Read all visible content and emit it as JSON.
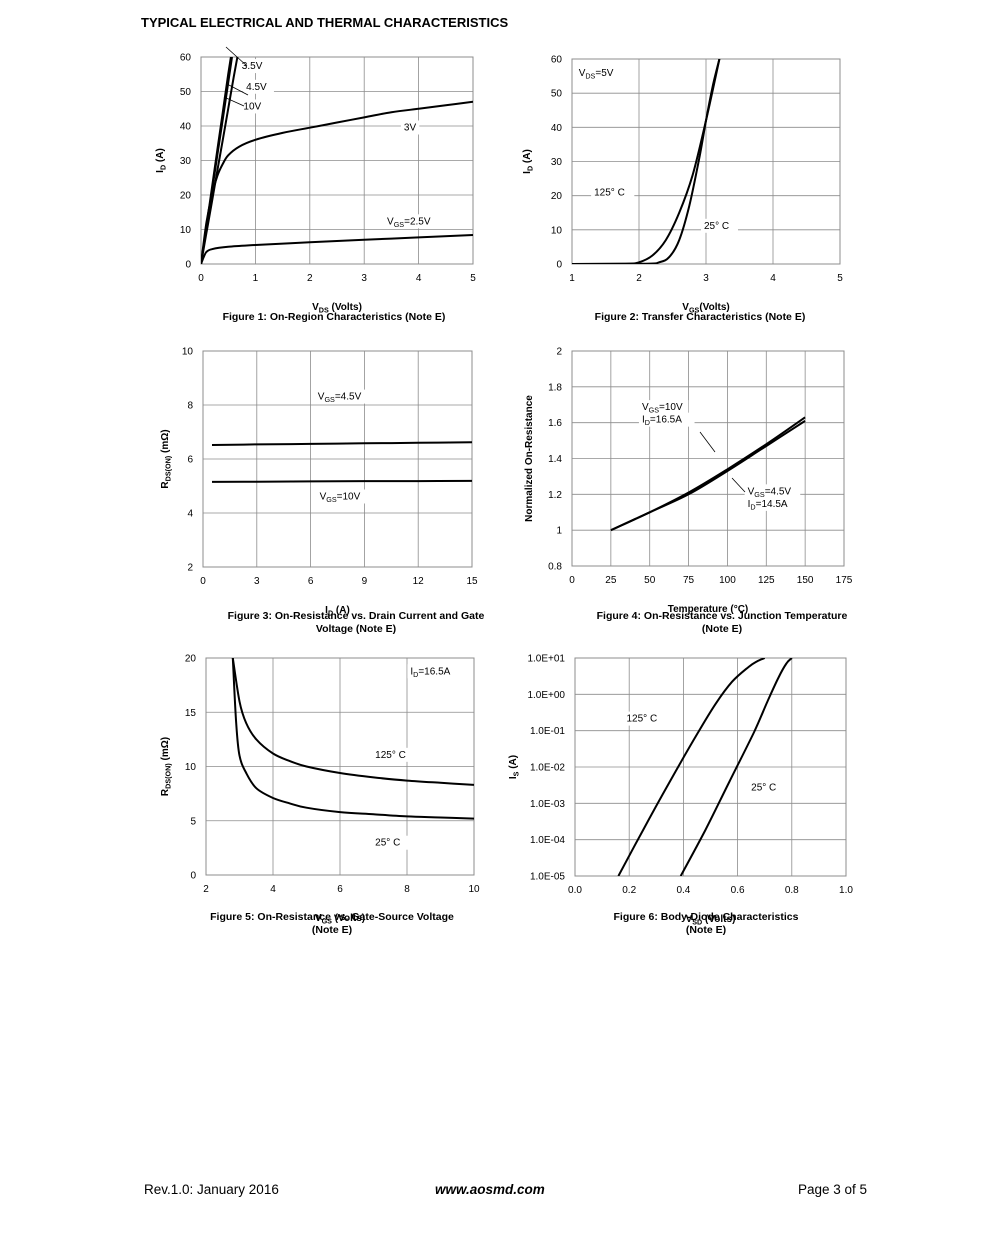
{
  "page": {
    "heading": "TYPICAL ELECTRICAL AND THERMAL CHARACTERISTICS",
    "footer_left": "Rev.1.0: January 2016",
    "footer_center": "www.aosmd.com",
    "footer_right": "Page 3 of 5"
  },
  "chart_data": [
    {
      "id": "fig1",
      "type": "line",
      "caption": [
        "Figure 1: On-Region Characteristics (Note E)"
      ],
      "xlabel": "VDS (Volts)",
      "ylabel": "ID (A)",
      "xlim": [
        0,
        5
      ],
      "ylim": [
        0,
        60
      ],
      "xticks": [
        "0",
        "1",
        "2",
        "3",
        "4",
        "5"
      ],
      "yticks": [
        "0",
        "10",
        "20",
        "30",
        "40",
        "50",
        "60"
      ],
      "grid": true,
      "annotations": [
        {
          "text": "3.5V",
          "x": 0.75,
          "y": 56.5
        },
        {
          "text": "4.5V",
          "x": 0.83,
          "y": 50.5
        },
        {
          "text": "10V",
          "x": 0.78,
          "y": 44.8
        },
        {
          "text": "3V",
          "x": 3.73,
          "y": 38.7
        },
        {
          "text": "VGS=2.5V",
          "x": 3.42,
          "y": 11.5
        }
      ],
      "series": [
        {
          "values": [
            [
              0,
              0
            ],
            [
              0.1,
              11
            ],
            [
              0.2,
              22
            ],
            [
              0.3,
              33
            ],
            [
              0.4,
              44
            ],
            [
              0.5,
              55
            ],
            [
              0.55,
              60
            ]
          ]
        },
        {
          "values": [
            [
              0,
              0
            ],
            [
              0.1,
              10.5
            ],
            [
              0.2,
              21
            ],
            [
              0.3,
              31.5
            ],
            [
              0.4,
              42
            ],
            [
              0.5,
              52.5
            ],
            [
              0.57,
              60
            ]
          ]
        },
        {
          "values": [
            [
              0,
              0
            ],
            [
              0.1,
              9
            ],
            [
              0.2,
              18
            ],
            [
              0.3,
              27
            ],
            [
              0.4,
              36
            ],
            [
              0.5,
              45
            ],
            [
              0.6,
              54
            ],
            [
              0.67,
              60
            ]
          ]
        },
        {
          "values": [
            [
              0,
              0
            ],
            [
              0.1,
              12
            ],
            [
              0.2,
              20
            ],
            [
              0.3,
              25.5
            ],
            [
              0.4,
              29
            ],
            [
              0.5,
              31.5
            ],
            [
              0.7,
              34
            ],
            [
              1,
              36
            ],
            [
              1.5,
              38
            ],
            [
              2,
              39.5
            ],
            [
              2.5,
              41
            ],
            [
              3,
              42.5
            ],
            [
              3.5,
              44
            ],
            [
              4,
              45
            ],
            [
              4.5,
              46
            ],
            [
              5,
              47
            ]
          ]
        },
        {
          "values": [
            [
              0,
              0
            ],
            [
              0.05,
              2
            ],
            [
              0.1,
              3.5
            ],
            [
              0.2,
              4.3
            ],
            [
              0.5,
              5
            ],
            [
              1,
              5.5
            ],
            [
              2,
              6.3
            ],
            [
              3,
              7
            ],
            [
              4,
              7.7
            ],
            [
              5,
              8.4
            ]
          ]
        }
      ]
    },
    {
      "id": "fig2",
      "type": "line",
      "caption": [
        "Figure 2: Transfer Characteristics (Note E)"
      ],
      "xlabel": "VGS(Volts)",
      "ylabel": "ID (A)",
      "xlim": [
        1,
        5
      ],
      "ylim": [
        0,
        60
      ],
      "xticks": [
        "1",
        "2",
        "3",
        "4",
        "5"
      ],
      "yticks": [
        "0",
        "10",
        "20",
        "30",
        "40",
        "50",
        "60"
      ],
      "grid": true,
      "annotations": [
        {
          "text": "VDS=5V",
          "x": 1.1,
          "y": 55
        },
        {
          "text": "125° C",
          "x": 1.33,
          "y": 20
        },
        {
          "text": "25° C",
          "x": 2.97,
          "y": 10.3
        }
      ],
      "series": [
        {
          "name": "125° C",
          "values": [
            [
              1,
              0
            ],
            [
              1.8,
              0.1
            ],
            [
              2.0,
              0.5
            ],
            [
              2.2,
              2.5
            ],
            [
              2.4,
              7
            ],
            [
              2.6,
              15
            ],
            [
              2.8,
              26
            ],
            [
              3.0,
              42
            ],
            [
              3.2,
              60
            ]
          ]
        },
        {
          "name": "25° C",
          "values": [
            [
              1,
              0
            ],
            [
              2.1,
              0.1
            ],
            [
              2.3,
              0.5
            ],
            [
              2.45,
              2
            ],
            [
              2.6,
              7
            ],
            [
              2.75,
              17
            ],
            [
              2.9,
              31
            ],
            [
              3.0,
              42
            ],
            [
              3.1,
              52
            ],
            [
              3.2,
              60
            ]
          ]
        }
      ]
    },
    {
      "id": "fig3",
      "type": "line",
      "caption": [
        "Figure 3: On-Resistance vs. Drain Current and Gate",
        "Voltage (Note E)"
      ],
      "xlabel": "ID (A)",
      "ylabel": "RDS(ON) (mΩ)",
      "xlim": [
        0,
        15
      ],
      "ylim": [
        2,
        10
      ],
      "xticks": [
        "0",
        "3",
        "6",
        "9",
        "12",
        "15"
      ],
      "yticks": [
        "2",
        "4",
        "6",
        "8",
        "10"
      ],
      "grid": true,
      "annotations": [
        {
          "text": "VGS=4.5V",
          "x": 6.4,
          "y": 8.2
        },
        {
          "text": "VGS=10V",
          "x": 6.5,
          "y": 4.5
        }
      ],
      "series": [
        {
          "name": "VGS=4.5V",
          "values": [
            [
              0.5,
              6.52
            ],
            [
              3,
              6.54
            ],
            [
              6,
              6.56
            ],
            [
              9,
              6.58
            ],
            [
              12,
              6.6
            ],
            [
              15,
              6.62
            ]
          ]
        },
        {
          "name": "VGS=10V",
          "values": [
            [
              0.5,
              5.15
            ],
            [
              3,
              5.16
            ],
            [
              6,
              5.17
            ],
            [
              9,
              5.18
            ],
            [
              12,
              5.18
            ],
            [
              15,
              5.19
            ]
          ]
        }
      ]
    },
    {
      "id": "fig4",
      "type": "line",
      "caption": [
        "Figure 4: On-Resistance vs. Junction Temperature",
        "(Note E)"
      ],
      "xlabel": "Temperature (°C)",
      "ylabel": "Normalized On-Resistance",
      "xlim": [
        0,
        175
      ],
      "ylim": [
        0.8,
        2
      ],
      "xticks": [
        "0",
        "25",
        "50",
        "75",
        "100",
        "125",
        "150",
        "175"
      ],
      "yticks": [
        "0.8",
        "1",
        "1.2",
        "1.4",
        "1.6",
        "1.8",
        "2"
      ],
      "grid": true,
      "annotations": [
        {
          "text": "VGS=10V",
          "x": 45,
          "y": 1.67
        },
        {
          "text": "ID=16.5A",
          "x": 45,
          "y": 1.6
        },
        {
          "text": "VGS=4.5V",
          "x": 113,
          "y": 1.2
        },
        {
          "text": "ID=14.5A",
          "x": 113,
          "y": 1.13
        }
      ],
      "series": [
        {
          "name": "VGS=10V, ID=16.5A",
          "values": [
            [
              25,
              1
            ],
            [
              50,
              1.1
            ],
            [
              75,
              1.21
            ],
            [
              100,
              1.34
            ],
            [
              125,
              1.48
            ],
            [
              150,
              1.63
            ]
          ]
        },
        {
          "name": "VGS=4.5V, ID=14.5A",
          "values": [
            [
              25,
              1
            ],
            [
              50,
              1.1
            ],
            [
              75,
              1.2
            ],
            [
              100,
              1.33
            ],
            [
              125,
              1.47
            ],
            [
              150,
              1.61
            ]
          ]
        }
      ]
    },
    {
      "id": "fig5",
      "type": "line",
      "caption": [
        "Figure 5: On-Resistance vs. Gate-Source Voltage",
        "(Note E)"
      ],
      "xlabel": "VGS (Volts)",
      "ylabel": "RDS(ON) (mΩ)",
      "xlim": [
        2,
        10
      ],
      "ylim": [
        0,
        20
      ],
      "xticks": [
        "2",
        "4",
        "6",
        "8",
        "10"
      ],
      "yticks": [
        "0",
        "5",
        "10",
        "15",
        "20"
      ],
      "grid": true,
      "annotations": [
        {
          "text": "ID=16.5A",
          "x": 8.1,
          "y": 18.5
        },
        {
          "text": "125° C",
          "x": 7.05,
          "y": 10.8
        },
        {
          "text": "25° C",
          "x": 7.05,
          "y": 2.7
        }
      ],
      "series": [
        {
          "name": "125° C",
          "values": [
            [
              2.8,
              20
            ],
            [
              3.0,
              16
            ],
            [
              3.2,
              14
            ],
            [
              3.5,
              12.5
            ],
            [
              4,
              11.2
            ],
            [
              4.5,
              10.5
            ],
            [
              5,
              10
            ],
            [
              6,
              9.4
            ],
            [
              7,
              9
            ],
            [
              8,
              8.7
            ],
            [
              9,
              8.5
            ],
            [
              10,
              8.3
            ]
          ]
        },
        {
          "name": "25° C",
          "values": [
            [
              2.8,
              20
            ],
            [
              2.9,
              14
            ],
            [
              3.0,
              11
            ],
            [
              3.2,
              9.4
            ],
            [
              3.5,
              8
            ],
            [
              4,
              7.1
            ],
            [
              4.5,
              6.6
            ],
            [
              5,
              6.2
            ],
            [
              6,
              5.8
            ],
            [
              7,
              5.6
            ],
            [
              8,
              5.4
            ],
            [
              9,
              5.3
            ],
            [
              10,
              5.2
            ]
          ]
        }
      ]
    },
    {
      "id": "fig6",
      "type": "line",
      "caption": [
        "Figure 6: Body-Diode Characteristics",
        "(Note E)"
      ],
      "xlabel": "VSD (Volts)",
      "ylabel": "IS (A)",
      "xlim": [
        0,
        1
      ],
      "ylim": [
        -5,
        1
      ],
      "yscale": "log",
      "xticks": [
        "0.0",
        "0.2",
        "0.4",
        "0.6",
        "0.8",
        "1.0"
      ],
      "yticks": [
        "1.0E-05",
        "1.0E-04",
        "1.0E-03",
        "1.0E-02",
        "1.0E-01",
        "1.0E+00",
        "1.0E+01"
      ],
      "grid": true,
      "annotations": [
        {
          "text": "125° C",
          "x": 0.19,
          "y": -0.75
        },
        {
          "text": "25° C",
          "x": 0.65,
          "y": -2.65
        }
      ],
      "series": [
        {
          "name": "125° C",
          "values": [
            [
              0.16,
              -5
            ],
            [
              0.25,
              -3.75
            ],
            [
              0.35,
              -2.4
            ],
            [
              0.45,
              -1.1
            ],
            [
              0.52,
              -0.25
            ],
            [
              0.58,
              0.35
            ],
            [
              0.64,
              0.75
            ],
            [
              0.67,
              0.9
            ],
            [
              0.7,
              1
            ]
          ]
        },
        {
          "name": "25° C",
          "values": [
            [
              0.39,
              -5
            ],
            [
              0.48,
              -3.75
            ],
            [
              0.57,
              -2.4
            ],
            [
              0.66,
              -1.05
            ],
            [
              0.71,
              -0.2
            ],
            [
              0.75,
              0.45
            ],
            [
              0.78,
              0.85
            ],
            [
              0.8,
              1
            ]
          ]
        }
      ]
    }
  ]
}
